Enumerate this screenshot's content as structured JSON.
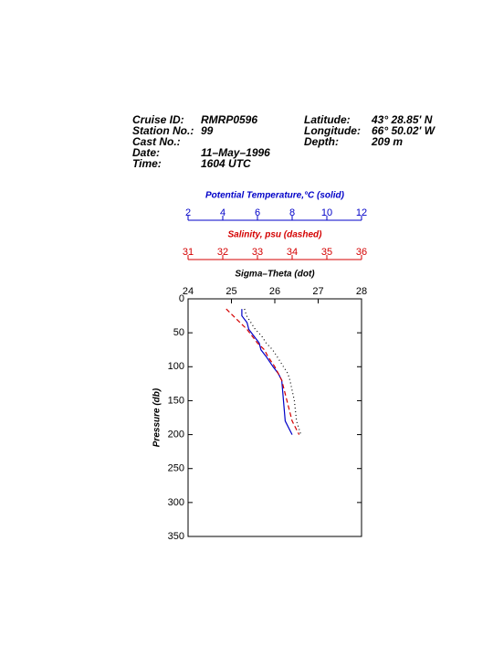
{
  "header": {
    "left": [
      {
        "label": "Cruise ID:",
        "value": "RMRP0596"
      },
      {
        "label": "Station No.:",
        "value": "99"
      },
      {
        "label": "Cast No.:"
      },
      {
        "label": "Date:",
        "value": "11–May–1996"
      },
      {
        "label": "Time:",
        "value": "1604 UTC"
      }
    ],
    "right": [
      {
        "label": "Latitude:",
        "value": "43° 28.85' N"
      },
      {
        "label": "Longitude:",
        "value": "66° 50.02' W"
      },
      {
        "label": "Depth:",
        "value": "209 m"
      }
    ]
  },
  "chart_data": {
    "type": "line",
    "y_label": "Pressure (db)",
    "ylim": [
      0,
      350
    ],
    "yticks": [
      0,
      50,
      100,
      150,
      200,
      250,
      300,
      350
    ],
    "y_reversed": true,
    "pressure": [
      15,
      25,
      35,
      45,
      55,
      65,
      75,
      85,
      100,
      110,
      120,
      150,
      180,
      200
    ],
    "series": [
      {
        "name": "Potential Temperature,°C (solid)",
        "color": "#0000c8",
        "line_style": "solid",
        "xlim": [
          2,
          12
        ],
        "xticks": [
          2,
          4,
          6,
          8,
          10,
          12
        ],
        "values": [
          5.1,
          5.1,
          5.4,
          5.5,
          5.8,
          6.1,
          6.2,
          6.5,
          6.9,
          7.2,
          7.4,
          7.5,
          7.6,
          8.0
        ]
      },
      {
        "name": "Salinity, psu  (dashed)",
        "color": "#d40000",
        "line_style": "dashed",
        "xlim": [
          31,
          36
        ],
        "xticks": [
          31,
          32,
          33,
          34,
          35,
          36
        ],
        "values": [
          32.1,
          32.3,
          32.5,
          32.7,
          32.85,
          33.0,
          33.2,
          33.3,
          33.5,
          33.6,
          33.7,
          33.85,
          34.0,
          34.2
        ]
      },
      {
        "name": "Sigma–Theta (dot)",
        "color": "#000000",
        "line_style": "dotted",
        "xlim": [
          24,
          28
        ],
        "xticks": [
          24,
          25,
          26,
          27,
          28
        ],
        "values": [
          25.3,
          25.35,
          25.45,
          25.55,
          25.7,
          25.8,
          25.95,
          26.05,
          26.2,
          26.3,
          26.35,
          26.45,
          26.5,
          26.6
        ]
      }
    ]
  }
}
